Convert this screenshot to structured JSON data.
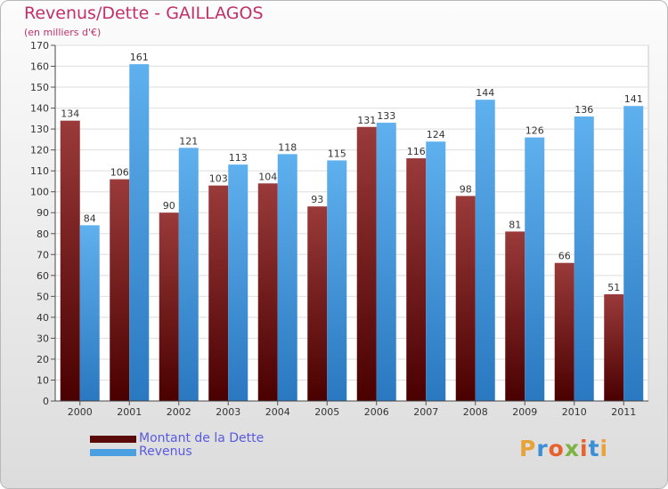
{
  "title": "Revenus/Dette - GAILLAGOS",
  "subtitle": "(en milliers d'€)",
  "logo": {
    "letters": [
      "P",
      "r",
      "o",
      "x",
      "i",
      "t",
      "i"
    ],
    "colors": [
      "#e8a23a",
      "#3a8fd6",
      "#e8612c",
      "#7cb342",
      "#e8612c",
      "#3a8fd6",
      "#e8a23a"
    ]
  },
  "chart_data": {
    "type": "bar",
    "categories": [
      "2000",
      "2001",
      "2002",
      "2003",
      "2004",
      "2005",
      "2006",
      "2007",
      "2008",
      "2009",
      "2010",
      "2011"
    ],
    "series": [
      {
        "name": "Montant de la Dette",
        "color": "#7a1a1a",
        "values": [
          134,
          106,
          90,
          103,
          104,
          93,
          131,
          116,
          98,
          81,
          66,
          51
        ]
      },
      {
        "name": "Revenus",
        "color": "#4a9fe0",
        "values": [
          84,
          161,
          121,
          113,
          118,
          115,
          133,
          124,
          144,
          126,
          136,
          141
        ]
      }
    ],
    "ylim": [
      0,
      170
    ],
    "yticks": [
      0,
      10,
      20,
      30,
      40,
      50,
      60,
      70,
      80,
      90,
      100,
      110,
      120,
      130,
      140,
      150,
      160,
      170
    ],
    "grid": true,
    "legend": "bottom-left",
    "xlabel": "",
    "ylabel": ""
  }
}
